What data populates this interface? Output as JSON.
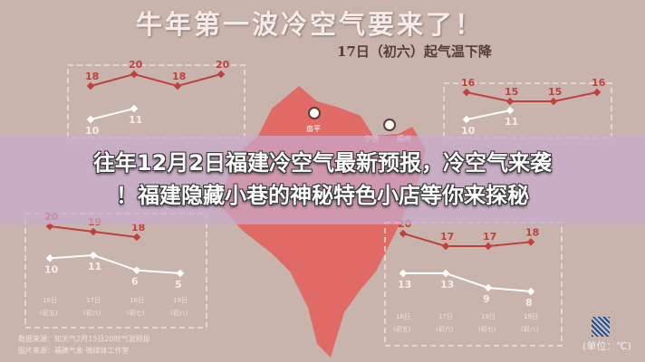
{
  "headline": "牛年第一波冷空气要来了！",
  "subhead": "17日（初六）起气温下降",
  "overlay": {
    "line1": "往年12月2日福建冷空气最新预报，冷空气来袭",
    "line2": "！福建隐藏小巷的神秘特色小店等你来探秘"
  },
  "map": {
    "cities": [
      "南平",
      "宁德",
      "福州"
    ],
    "color": "#e06a66"
  },
  "colors": {
    "high": "#c0403c",
    "low": "#ffffff",
    "background": "#c8b4ad"
  },
  "chart_data": [
    {
      "type": "line",
      "name_hidden": true,
      "categories": [
        "16日",
        "17日",
        "18日",
        "19日"
      ],
      "sub": [
        "(初五)",
        "(初六)",
        "(初七)",
        "(初八)"
      ],
      "high": [
        18,
        20,
        18,
        20
      ],
      "low": [
        10,
        11,
        null,
        null
      ],
      "show_axis": false
    },
    {
      "type": "line",
      "categories": [
        "16日",
        "17日",
        "18日",
        "19日"
      ],
      "sub": [
        "(初五)",
        "(初六)",
        "(初七)",
        "(初八)"
      ],
      "high": [
        16,
        15,
        15,
        16
      ],
      "low": [
        10,
        11,
        null,
        null
      ],
      "show_axis": false
    },
    {
      "type": "line",
      "categories": [
        "16日",
        "17日",
        "18日",
        "19日"
      ],
      "sub": [
        "(初五)",
        "(初六)",
        "(初七)",
        "(初八)"
      ],
      "high": [
        20,
        19,
        18,
        null
      ],
      "low": [
        10,
        11,
        6,
        5
      ],
      "show_axis": true
    },
    {
      "type": "line",
      "categories": [
        "16日",
        "17日",
        "18日",
        "19日"
      ],
      "sub": [
        "(初五)",
        "(初六)",
        "(初七)",
        "(初八)"
      ],
      "high": [
        20,
        17,
        17,
        18
      ],
      "low": [
        13,
        13,
        9,
        8
      ],
      "show_axis": true
    }
  ],
  "footer": {
    "source1": "数据来源：知天气2月15日20时气温预报",
    "source2": "图片来源：福建气象·微媒体工作室",
    "unit": "(单位：℃)"
  }
}
